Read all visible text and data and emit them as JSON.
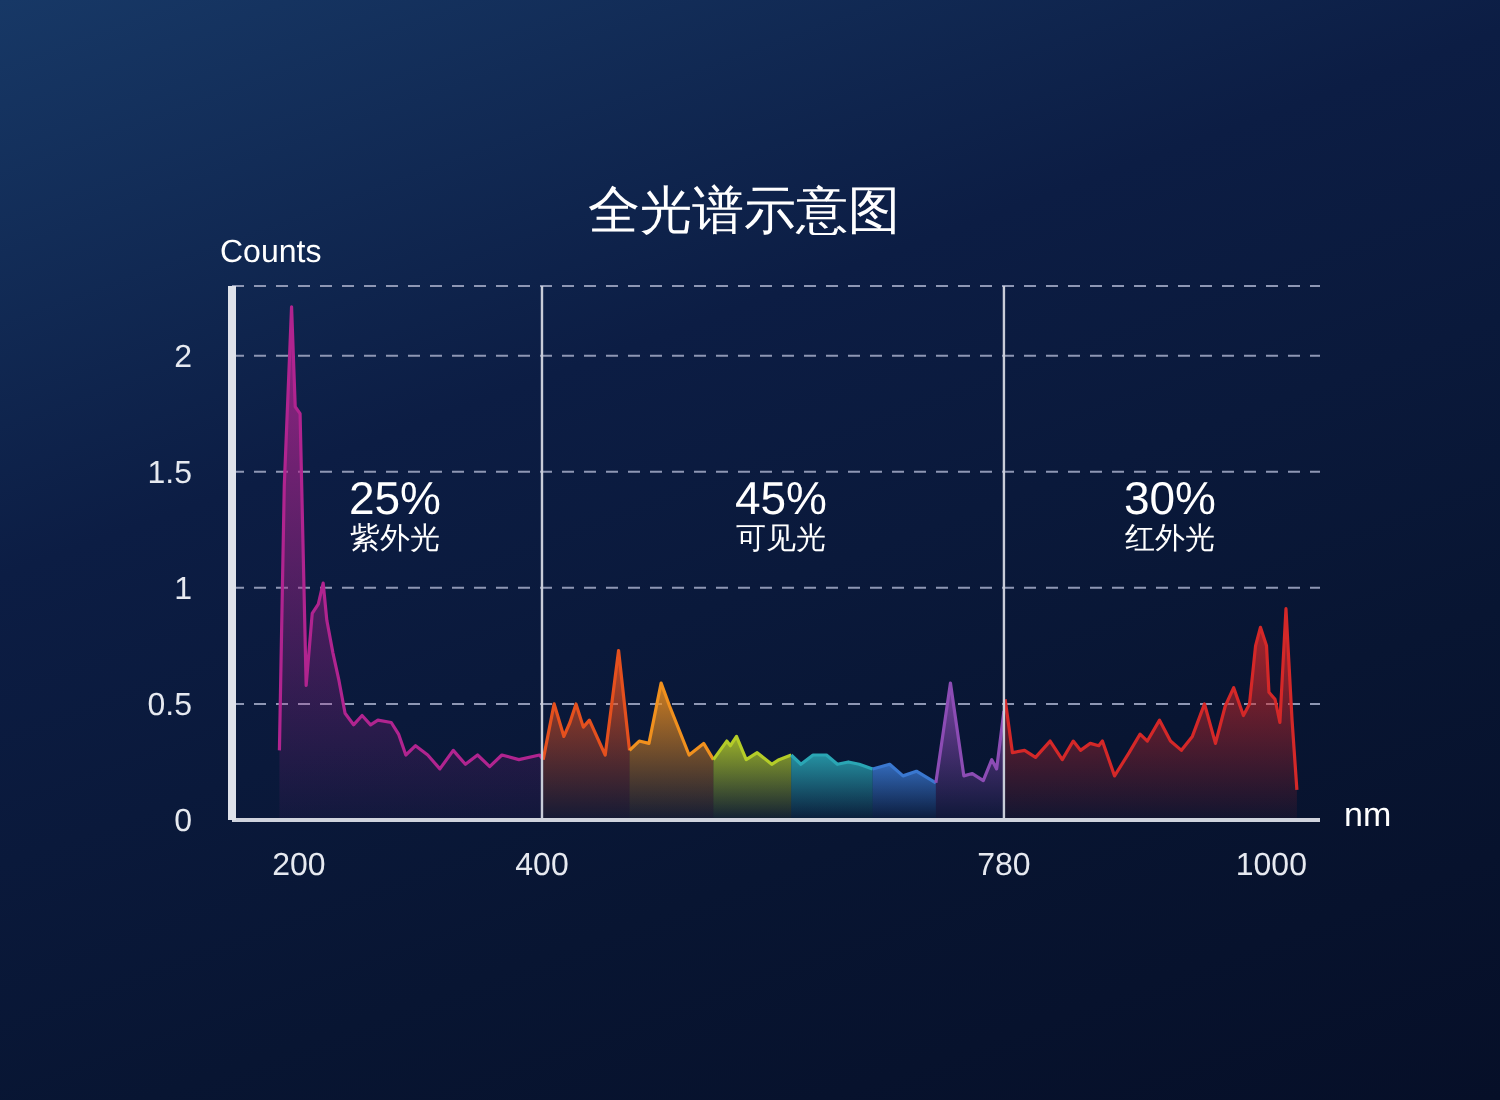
{
  "chart_data": {
    "type": "area",
    "title": "全光谱示意图",
    "xlabel": "nm",
    "ylabel": "Counts",
    "xlim": [
      145,
      1040
    ],
    "xticks": [
      200,
      400,
      780,
      1000
    ],
    "ylim": [
      0,
      2.3
    ],
    "yticks": [
      0,
      0.5,
      1,
      1.5,
      2
    ],
    "grid": "y",
    "ref_lines": [
      {
        "axis": "x",
        "value": 400,
        "color": "#c8ccd8"
      },
      {
        "axis": "x",
        "value": 780,
        "color": "#c8ccd8"
      }
    ],
    "annotations": [
      "25%\n紫外光",
      "45%\n可见光",
      "30%\n红外光"
    ],
    "series": [
      {
        "color": "#b0248f",
        "x": [
          184,
          188,
          194,
          197,
          201,
          206,
          211,
          216,
          220,
          223,
          228,
          233,
          238,
          245,
          252,
          259,
          265,
          276,
          282,
          288,
          296,
          306,
          316,
          327,
          337,
          347,
          357,
          367,
          381,
          398,
          401
        ],
        "values": [
          0.3,
          1.44,
          2.21,
          1.78,
          1.75,
          0.58,
          0.89,
          0.93,
          1.02,
          0.86,
          0.72,
          0.6,
          0.46,
          0.41,
          0.45,
          0.41,
          0.43,
          0.42,
          0.37,
          0.28,
          0.32,
          0.28,
          0.22,
          0.3,
          0.24,
          0.28,
          0.23,
          0.28,
          0.26,
          0.28,
          0.26
        ]
      },
      {
        "color": "#e4501e",
        "x": [
          401,
          410,
          418,
          423,
          428,
          434,
          439,
          452,
          463,
          472
        ],
        "values": [
          0.26,
          0.5,
          0.36,
          0.42,
          0.5,
          0.4,
          0.43,
          0.28,
          0.73,
          0.3
        ]
      },
      {
        "color": "#f0901e",
        "x": [
          472,
          480,
          488,
          498,
          505,
          521,
          533,
          541
        ],
        "values": [
          0.3,
          0.34,
          0.33,
          0.59,
          0.49,
          0.28,
          0.33,
          0.26
        ]
      },
      {
        "color": "#b4cc28",
        "x": [
          541,
          552,
          555,
          560,
          568,
          577,
          589,
          595,
          605
        ],
        "values": [
          0.26,
          0.34,
          0.32,
          0.36,
          0.26,
          0.29,
          0.24,
          0.26,
          0.28
        ]
      },
      {
        "color": "#2aa6b4",
        "x": [
          605,
          613,
          623,
          634,
          643,
          652,
          661,
          672
        ],
        "values": [
          0.28,
          0.24,
          0.28,
          0.28,
          0.24,
          0.25,
          0.24,
          0.22
        ]
      },
      {
        "color": "#3a78d0",
        "x": [
          672,
          686,
          697,
          708,
          724
        ],
        "values": [
          0.22,
          0.24,
          0.19,
          0.21,
          0.16
        ]
      },
      {
        "color": "#8c4cb4",
        "x": [
          724,
          736,
          747,
          754,
          763,
          770,
          774,
          780
        ],
        "values": [
          0.16,
          0.59,
          0.19,
          0.2,
          0.17,
          0.26,
          0.22,
          0.47
        ]
      },
      {
        "color": "#d42828",
        "x": [
          781,
          787,
          797,
          806,
          818,
          828,
          837,
          843,
          851,
          858,
          861,
          871,
          883,
          892,
          898,
          908,
          917,
          926,
          935,
          945,
          954,
          962,
          969,
          977,
          982,
          987,
          991,
          996,
          998,
          1003,
          1007,
          1012,
          1017,
          1021
        ],
        "values": [
          0.52,
          0.29,
          0.3,
          0.27,
          0.34,
          0.26,
          0.34,
          0.3,
          0.33,
          0.32,
          0.34,
          0.19,
          0.29,
          0.37,
          0.34,
          0.43,
          0.34,
          0.3,
          0.36,
          0.5,
          0.33,
          0.49,
          0.57,
          0.45,
          0.5,
          0.75,
          0.83,
          0.75,
          0.55,
          0.52,
          0.42,
          0.91,
          0.43,
          0.13
        ]
      }
    ]
  }
}
